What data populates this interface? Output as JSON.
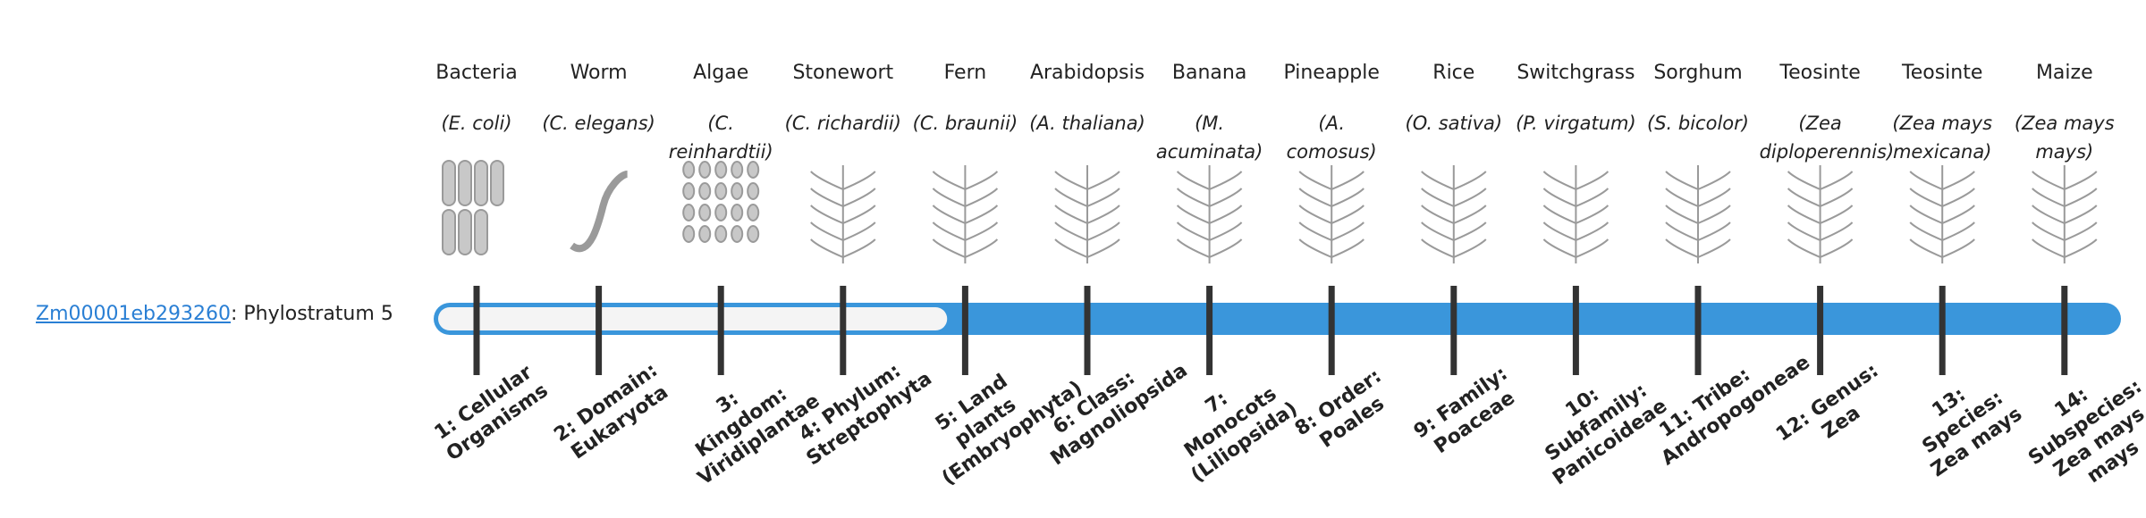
{
  "gene": {
    "id": "Zm00001eb293260",
    "label": ": Phylostratum ",
    "phylostratum": 5
  },
  "organisms": [
    {
      "name": "Bacteria",
      "species": "(E. coli)",
      "stage": "1: Cellular Organisms"
    },
    {
      "name": "Worm",
      "species": "(C. elegans)",
      "stage": "2: Domain: Eukaryota"
    },
    {
      "name": "Algae",
      "species": "(C. reinhardtii)",
      "stage": "3: Kingdom: Viridiplantae"
    },
    {
      "name": "Stonewort",
      "species": "(C. richardii)",
      "stage": "4: Phylum: Streptophyta"
    },
    {
      "name": "Fern",
      "species": "(C. braunii)",
      "stage": "5: Land plants (Embryophyta)"
    },
    {
      "name": "Arabidopsis",
      "species": "(A. thaliana)",
      "stage": "6: Class: Magnoliopsida"
    },
    {
      "name": "Banana",
      "species": "(M. acuminata)",
      "stage": "7: Monocots (Liliopsida)"
    },
    {
      "name": "Pineapple",
      "species": "(A. comosus)",
      "stage": "8: Order: Poales"
    },
    {
      "name": "Rice",
      "species": "(O. sativa)",
      "stage": "9: Family: Poaceae"
    },
    {
      "name": "Switchgrass",
      "species": "(P. virgatum)",
      "stage": "10: Subfamily: Panicoideae"
    },
    {
      "name": "Sorghum",
      "species": "(S. bicolor)",
      "stage": "11: Tribe: Andropogoneae"
    },
    {
      "name": "Teosinte",
      "species": "(Zea diploperennis)",
      "stage": "12: Genus: Zea"
    },
    {
      "name": "Teosinte",
      "species": "(Zea mays mexicana)",
      "stage": "13: Species: Zea mays"
    },
    {
      "name": "Maize",
      "species": "(Zea mays mays)",
      "stage": "14: Subspecies: Zea mays mays"
    }
  ]
}
